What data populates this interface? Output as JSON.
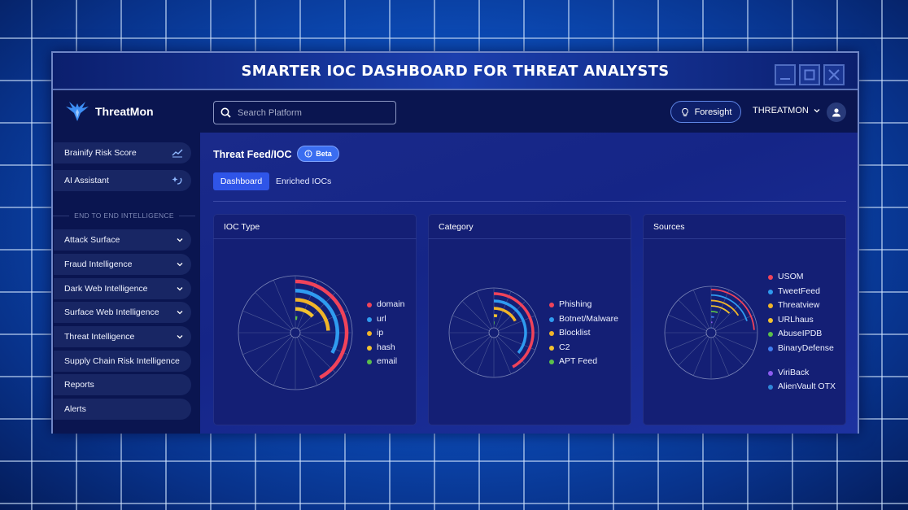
{
  "banner": {
    "title": "SMARTER IOC DASHBOARD FOR THREAT ANALYSTS"
  },
  "header": {
    "logo_text": "ThreatMon",
    "search_placeholder": "Search Platform",
    "foresight_label": "Foresight",
    "account_label": "THREATMON"
  },
  "sidebar": {
    "top_items": [
      {
        "label": "Brainify Risk Score",
        "icon": "trend-chart-icon"
      },
      {
        "label": "AI Assistant",
        "icon": "ai-sparkle-icon"
      }
    ],
    "section_label": "END TO END INTELLIGENCE",
    "items": [
      {
        "label": "Attack Surface",
        "expandable": true
      },
      {
        "label": "Fraud Intelligence",
        "expandable": true
      },
      {
        "label": "Dark Web Intelligence",
        "expandable": true
      },
      {
        "label": "Surface Web Intelligence",
        "expandable": true
      },
      {
        "label": "Threat Intelligence",
        "expandable": true
      },
      {
        "label": "Supply Chain Risk Intelligence",
        "expandable": false
      },
      {
        "label": "Reports",
        "expandable": false
      },
      {
        "label": "Alerts",
        "expandable": false
      }
    ]
  },
  "main": {
    "title": "Threat Feed/IOC",
    "badge": "Beta",
    "tabs": [
      {
        "label": "Dashboard",
        "active": true
      },
      {
        "label": "Enriched IOCs",
        "active": false
      }
    ]
  },
  "cards": [
    {
      "title": "IOC Type",
      "legend": [
        {
          "label": "domain",
          "color": "#f0435a"
        },
        {
          "label": "url",
          "color": "#2f9bf0"
        },
        {
          "label": "ip",
          "color": "#f0b429"
        },
        {
          "label": "hash",
          "color": "#f2c230"
        },
        {
          "label": "email",
          "color": "#5bbf4a"
        }
      ]
    },
    {
      "title": "Category",
      "legend": [
        {
          "label": "Phishing",
          "color": "#f0435a"
        },
        {
          "label": "Botnet/Malware",
          "color": "#2f9bf0"
        },
        {
          "label": "Blocklist",
          "color": "#f0b429"
        },
        {
          "label": "C2",
          "color": "#f2c230"
        },
        {
          "label": "APT Feed",
          "color": "#5bbf4a"
        }
      ]
    },
    {
      "title": "Sources",
      "legend": [
        {
          "label": "USOM",
          "color": "#f0435a"
        },
        {
          "label": "TweetFeed",
          "color": "#2f9bf0"
        },
        {
          "label": "Threatview",
          "color": "#f0b429"
        },
        {
          "label": "URLhaus",
          "color": "#f2c230"
        },
        {
          "label": "AbuseIPDB",
          "color": "#5bbf4a"
        },
        {
          "label": "BinaryDefense",
          "color": "#3f7cf0"
        },
        {
          "label": "ViriBack",
          "color": "#8c5cf0"
        },
        {
          "label": "AlienVault OTX",
          "color": "#2f86d8"
        }
      ]
    }
  ],
  "chart_data": [
    {
      "type": "radial-bar",
      "title": "IOC Type",
      "categories": [
        "domain",
        "url",
        "ip",
        "hash",
        "email"
      ],
      "values": [
        0.42,
        0.33,
        0.24,
        0.13,
        0.02
      ],
      "value_unit": "fraction of full circle"
    },
    {
      "type": "radial-bar",
      "title": "Category",
      "categories": [
        "Phishing",
        "Botnet/Malware",
        "Blocklist",
        "C2",
        "APT Feed"
      ],
      "values": [
        0.42,
        0.36,
        0.17,
        0.03,
        0.01
      ],
      "value_unit": "fraction of full circle"
    },
    {
      "type": "radial-bar",
      "title": "Sources",
      "categories": [
        "USOM",
        "TweetFeed",
        "Threatview",
        "URLhaus",
        "AbuseIPDB",
        "BinaryDefense",
        "ViriBack",
        "AlienVault OTX"
      ],
      "values": [
        0.24,
        0.2,
        0.16,
        0.12,
        0.05,
        0.03,
        0.02,
        0.01
      ],
      "value_unit": "fraction of full circle"
    }
  ]
}
